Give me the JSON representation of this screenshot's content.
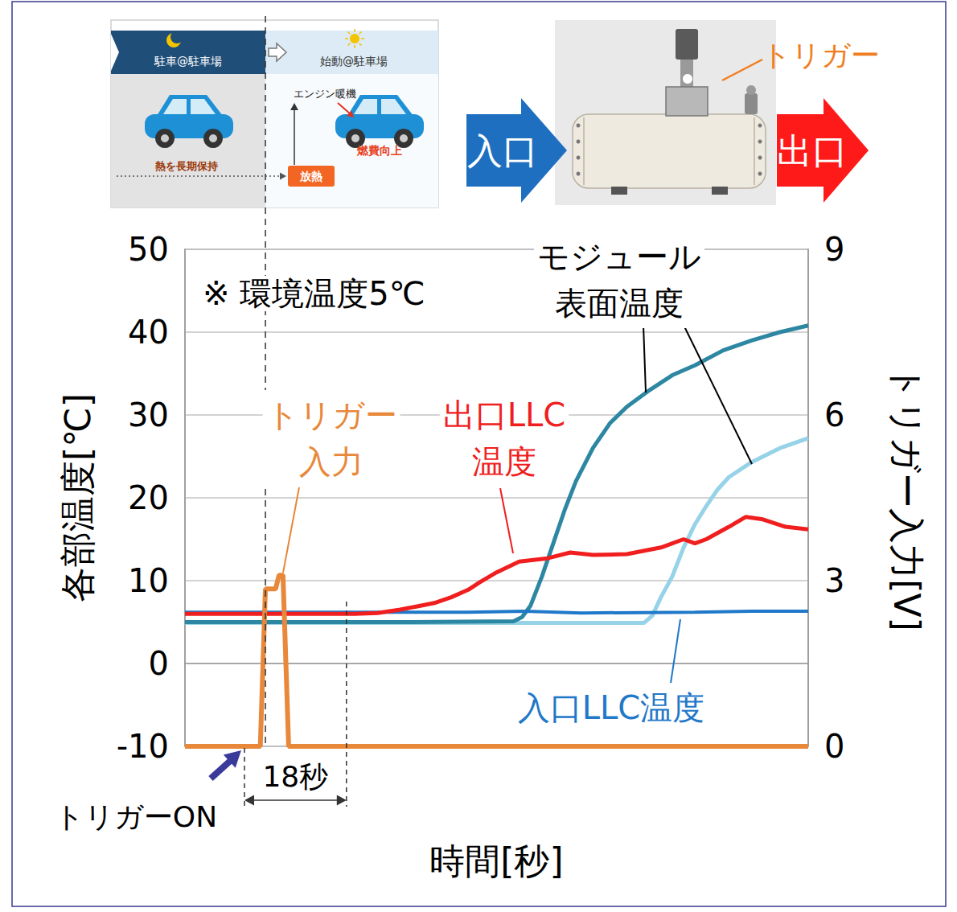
{
  "chart_data": {
    "type": "line",
    "xlabel": "時間[秒]",
    "ylabel": "各部温度[℃]",
    "y2label": "トリガー入力[V]",
    "xlim": [
      0,
      110
    ],
    "ylim": [
      -10,
      50
    ],
    "yticks": [
      -10,
      0,
      10,
      20,
      30,
      40,
      50
    ],
    "y2lim": [
      0,
      9
    ],
    "y2ticks": [
      0,
      3,
      6,
      9
    ],
    "grid": true,
    "tick_labels": "y",
    "series": [
      {
        "name": "トリガー入力",
        "axis": "y2",
        "color": "#E8883A",
        "x": [
          0,
          13.3,
          14.2,
          16.0,
          16.6,
          17.3,
          18.3,
          110
        ],
        "values": [
          0,
          0,
          2.85,
          2.85,
          3.1,
          3.1,
          0,
          0
        ]
      },
      {
        "name": "出口LLC温度",
        "color": "#F01E1E",
        "x": [
          0,
          10,
          20,
          30,
          34,
          38,
          41,
          44,
          47,
          50,
          52,
          55,
          59,
          64,
          68,
          72,
          78,
          84,
          88,
          90,
          92,
          96,
          99,
          102,
          106,
          110
        ],
        "values": [
          6.0,
          6.0,
          6.0,
          6.0,
          6.1,
          6.5,
          6.9,
          7.3,
          8.0,
          8.9,
          9.8,
          11.0,
          12.3,
          12.7,
          13.4,
          13.1,
          13.2,
          14.0,
          15.0,
          14.5,
          15.0,
          16.5,
          17.7,
          17.4,
          16.5,
          16.2
        ]
      },
      {
        "name": "入口LLC温度",
        "color": "#1F78C8",
        "x": [
          0,
          30,
          50,
          60,
          70,
          90,
          100,
          110
        ],
        "values": [
          6.2,
          6.2,
          6.2,
          6.3,
          6.1,
          6.2,
          6.3,
          6.3
        ]
      },
      {
        "name": "モジュール表面温度",
        "color": "#2E87A2",
        "x": [
          0,
          40,
          58,
          59.5,
          61,
          63,
          65,
          67,
          69,
          72,
          75,
          78,
          82,
          86,
          90,
          95,
          100,
          105,
          110
        ],
        "values": [
          5.0,
          5.0,
          5.1,
          5.6,
          7.0,
          10.5,
          14.5,
          18.5,
          22,
          26,
          29,
          31,
          33,
          34.8,
          36,
          37.8,
          39,
          40,
          40.8
        ]
      },
      {
        "name": "モジュール表面温度",
        "color": "#96D2E8",
        "x": [
          0,
          50,
          81,
          82.5,
          84,
          86,
          88,
          90,
          92,
          94,
          96,
          100,
          105,
          110
        ],
        "values": [
          4.9,
          4.9,
          4.9,
          5.8,
          8.0,
          10.5,
          14.0,
          16.8,
          19.0,
          21.0,
          22.5,
          24.3,
          26.0,
          27.2
        ]
      }
    ],
    "annotations": [
      {
        "text": "※ 環境温度5℃"
      },
      {
        "text": "トリガーON",
        "x": 10.5
      },
      {
        "text": "18秒",
        "x": [
          10.5,
          28.5
        ]
      }
    ]
  },
  "illustration": {
    "scene": {
      "before": "駐車@駐車場",
      "after": "始動@駐車場",
      "hold": "熱を長期保持",
      "release": "放熱",
      "warmup": "エンジン暖機",
      "benefit": "燃費向上"
    },
    "photo": {
      "trigger": "トリガー",
      "inlet": "入口",
      "outlet": "出口"
    }
  }
}
